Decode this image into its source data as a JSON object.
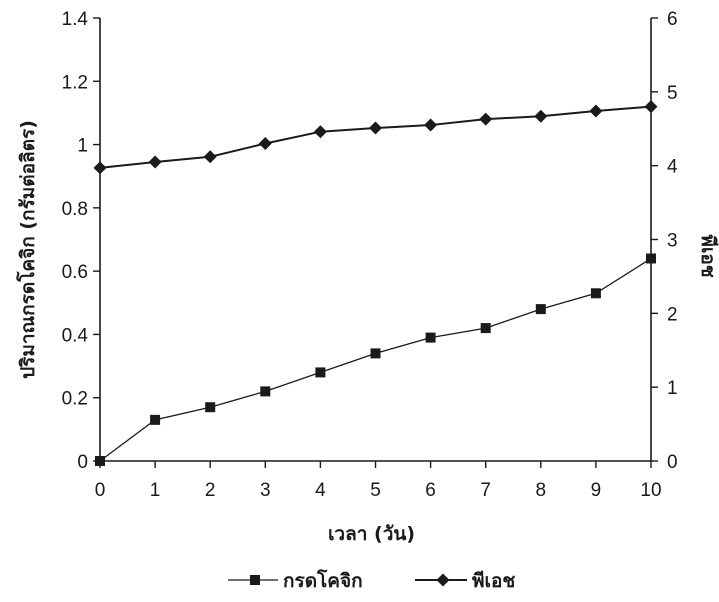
{
  "chart_data": {
    "type": "line",
    "x": [
      0,
      1,
      2,
      3,
      4,
      5,
      6,
      7,
      8,
      9,
      10
    ],
    "xlabel": "เวลา (วัน)",
    "ylabel": "ปริมาณกรดโคจิก (กรัมต่อลิตร)",
    "y2label": "พีเอช",
    "xlim": [
      0,
      10
    ],
    "ylim": [
      0,
      1.4
    ],
    "y2lim": [
      0,
      6
    ],
    "x_ticks": [
      "0",
      "1",
      "2",
      "3",
      "4",
      "5",
      "6",
      "7",
      "8",
      "9",
      "10"
    ],
    "y_ticks": [
      "0",
      "0.2",
      "0.4",
      "0.6",
      "0.8",
      "1",
      "1.2",
      "1.4"
    ],
    "y2_ticks": [
      "0",
      "1",
      "2",
      "3",
      "4",
      "5",
      "6"
    ],
    "grid": false,
    "legend_position": "bottom",
    "series": [
      {
        "name": "กรดโคจิก",
        "axis": "left",
        "marker": "square",
        "color": "#1a1a1a",
        "values": [
          0,
          0.13,
          0.17,
          0.22,
          0.28,
          0.34,
          0.39,
          0.42,
          0.48,
          0.53,
          0.64
        ]
      },
      {
        "name": "พีเอช",
        "axis": "right",
        "marker": "diamond",
        "color": "#1a1a1a",
        "values": [
          3.97,
          4.05,
          4.12,
          4.3,
          4.46,
          4.51,
          4.55,
          4.63,
          4.67,
          4.74,
          4.8
        ]
      }
    ]
  }
}
